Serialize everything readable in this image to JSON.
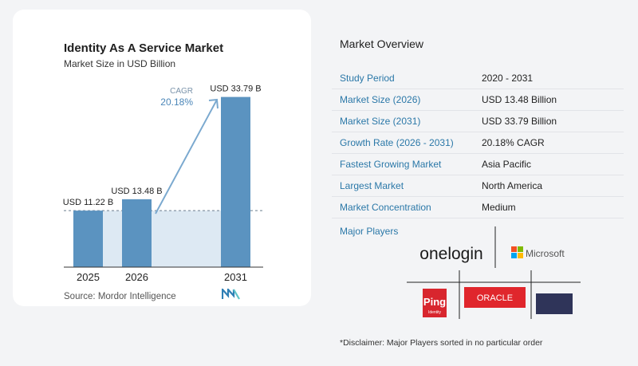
{
  "chart_data": {
    "type": "bar",
    "title": "Identity As A Service Market",
    "subtitle": "Market Size in USD Billion",
    "categories": [
      "2025",
      "2026",
      "2031"
    ],
    "values": [
      11.22,
      13.48,
      33.79
    ],
    "value_labels": [
      "USD 11.22 B",
      "USD 13.48 B",
      "USD 33.79 B"
    ],
    "cagr_label": "CAGR",
    "cagr_value": "20.18%",
    "ylim": [
      0,
      38
    ],
    "grid": false,
    "colors": {
      "bar": "#5b93c0",
      "bar_top": "#7fb3d6",
      "shade": "#dde9f3",
      "arrow": "#7ba9cf"
    }
  },
  "source": "Source:  Mordor Intelligence",
  "overview": {
    "title": "Market Overview",
    "rows": [
      {
        "label": "Study Period",
        "value": "2020 - 2031"
      },
      {
        "label": "Market Size (2026)",
        "value": "USD 13.48 Billion"
      },
      {
        "label": "Market Size (2031)",
        "value": "USD 33.79 Billion"
      },
      {
        "label": "Growth Rate (2026 - 2031)",
        "value": "20.18% CAGR"
      },
      {
        "label": "Fastest Growing Market",
        "value": "Asia Pacific"
      },
      {
        "label": "Largest Market",
        "value": "North America"
      },
      {
        "label": "Market Concentration",
        "value": "Medium"
      }
    ]
  },
  "major_players": {
    "title": "Major Players",
    "logos": [
      "onelogin",
      "Microsoft",
      "Ping",
      "Identity",
      "ORACLE"
    ]
  },
  "disclaimer": "*Disclaimer: Major Players sorted in no particular order"
}
